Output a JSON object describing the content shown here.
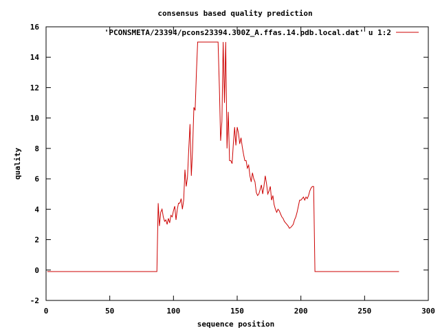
{
  "chart_data": {
    "type": "line",
    "title": "consensus based quality prediction",
    "xlabel": "sequence position",
    "ylabel": "quality",
    "xlim": [
      0,
      300
    ],
    "ylim": [
      -2,
      16
    ],
    "x_ticks": [
      0,
      50,
      100,
      150,
      200,
      250,
      300
    ],
    "y_ticks": [
      -2,
      0,
      2,
      4,
      6,
      8,
      10,
      12,
      14,
      16
    ],
    "grid": false,
    "legend_position": "top-right",
    "series": [
      {
        "name": "'PCONSMETA/23394/pcons23394.300Z_A.ffas.14.pdb.local.dat' u 1:2",
        "color": "#cc0000",
        "points": [
          [
            1,
            -0.1
          ],
          [
            87,
            -0.1
          ],
          [
            87.5,
            2.3
          ],
          [
            88,
            4.4
          ],
          [
            89,
            2.9
          ],
          [
            90,
            3.8
          ],
          [
            91,
            4.0
          ],
          [
            92,
            3.5
          ],
          [
            93,
            3.2
          ],
          [
            94,
            3.3
          ],
          [
            95,
            3.0
          ],
          [
            96,
            3.4
          ],
          [
            97,
            3.1
          ],
          [
            98,
            3.6
          ],
          [
            99,
            3.5
          ],
          [
            100,
            3.9
          ],
          [
            101,
            4.2
          ],
          [
            102,
            3.3
          ],
          [
            103,
            4.0
          ],
          [
            104,
            4.4
          ],
          [
            105,
            4.4
          ],
          [
            106,
            4.7
          ],
          [
            107,
            4.0
          ],
          [
            108,
            4.6
          ],
          [
            109,
            6.6
          ],
          [
            110,
            5.5
          ],
          [
            111,
            6.1
          ],
          [
            112,
            8.0
          ],
          [
            113,
            9.6
          ],
          [
            114,
            6.2
          ],
          [
            115,
            7.9
          ],
          [
            116,
            10.7
          ],
          [
            117,
            10.5
          ],
          [
            118,
            13.0
          ],
          [
            119,
            15.0
          ],
          [
            135,
            15.0
          ],
          [
            136,
            12.0
          ],
          [
            137,
            8.5
          ],
          [
            138,
            9.8
          ],
          [
            139,
            15.0
          ],
          [
            140,
            11.0
          ],
          [
            141,
            15.0
          ],
          [
            142,
            8.0
          ],
          [
            143,
            10.4
          ],
          [
            144,
            7.2
          ],
          [
            145,
            7.2
          ],
          [
            146,
            7.0
          ],
          [
            147,
            8.3
          ],
          [
            148,
            9.4
          ],
          [
            149,
            8.2
          ],
          [
            150,
            9.4
          ],
          [
            151,
            9.0
          ],
          [
            152,
            8.3
          ],
          [
            153,
            8.7
          ],
          [
            154,
            8.1
          ],
          [
            155,
            7.6
          ],
          [
            156,
            7.2
          ],
          [
            157,
            7.2
          ],
          [
            158,
            6.7
          ],
          [
            159,
            6.9
          ],
          [
            160,
            6.2
          ],
          [
            161,
            5.8
          ],
          [
            162,
            6.4
          ],
          [
            163,
            6.0
          ],
          [
            164,
            5.8
          ],
          [
            165,
            5.1
          ],
          [
            166,
            4.9
          ],
          [
            167,
            5.0
          ],
          [
            168,
            5.3
          ],
          [
            169,
            5.6
          ],
          [
            170,
            5.0
          ],
          [
            171,
            5.5
          ],
          [
            172,
            6.2
          ],
          [
            173,
            5.7
          ],
          [
            174,
            5.0
          ],
          [
            175,
            5.2
          ],
          [
            176,
            5.5
          ],
          [
            177,
            4.6
          ],
          [
            178,
            4.9
          ],
          [
            179,
            4.3
          ],
          [
            180,
            4.0
          ],
          [
            181,
            3.8
          ],
          [
            182,
            4.0
          ],
          [
            183,
            3.9
          ],
          [
            184,
            3.7
          ],
          [
            185,
            3.5
          ],
          [
            186,
            3.4
          ],
          [
            187,
            3.2
          ],
          [
            188,
            3.1
          ],
          [
            189,
            3.0
          ],
          [
            190,
            2.9
          ],
          [
            191,
            2.75
          ],
          [
            192,
            2.8
          ],
          [
            193,
            2.9
          ],
          [
            194,
            3.0
          ],
          [
            195,
            3.3
          ],
          [
            196,
            3.5
          ],
          [
            197,
            3.8
          ],
          [
            198,
            4.2
          ],
          [
            199,
            4.6
          ],
          [
            200,
            4.6
          ],
          [
            201,
            4.7
          ],
          [
            202,
            4.8
          ],
          [
            203,
            4.6
          ],
          [
            204,
            4.8
          ],
          [
            205,
            4.7
          ],
          [
            206,
            4.9
          ],
          [
            207,
            5.2
          ],
          [
            208,
            5.4
          ],
          [
            209,
            5.5
          ],
          [
            210,
            5.5
          ],
          [
            211,
            -0.1
          ],
          [
            277,
            -0.1
          ]
        ]
      }
    ]
  }
}
